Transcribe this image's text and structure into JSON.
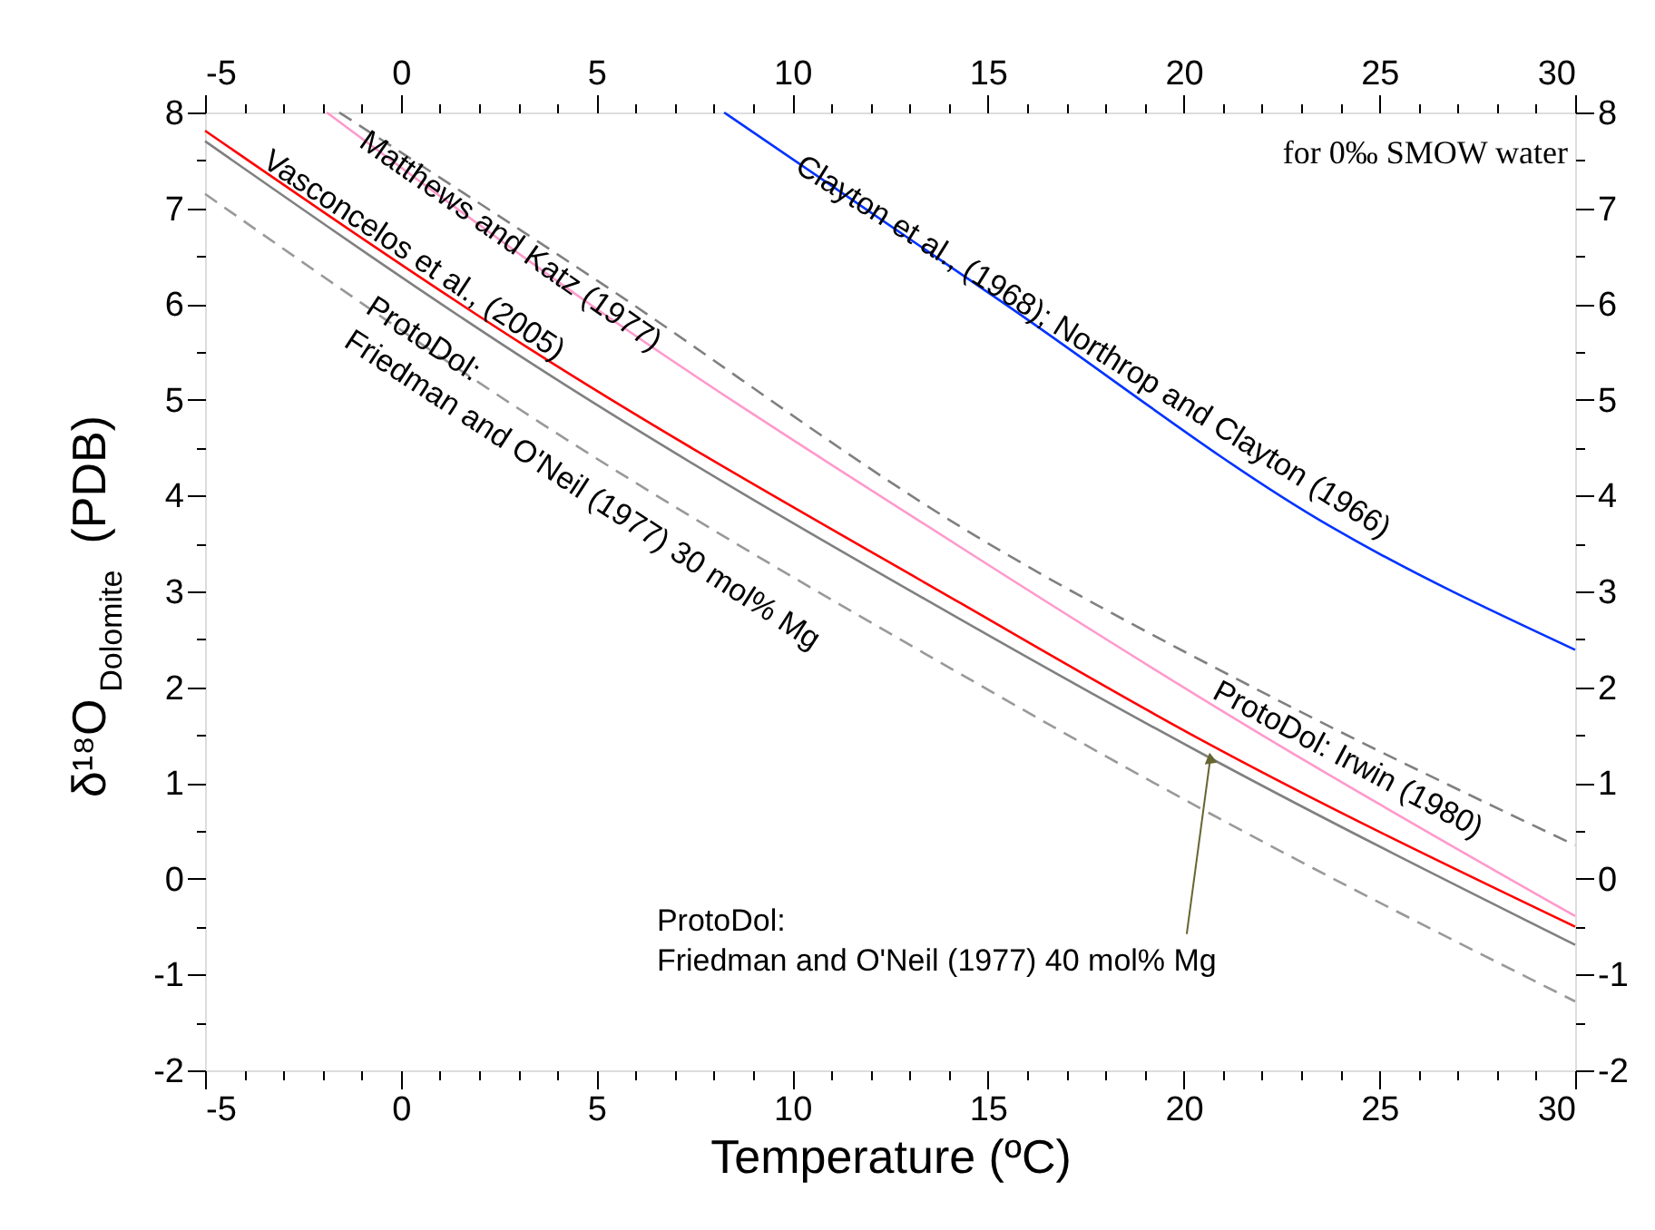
{
  "chart_data": {
    "type": "line",
    "xlabel": "Temperature (ºC)",
    "ylabel": "δ¹⁸O$_{Dolomite}$ (PDB)",
    "xlim": [
      -5,
      30
    ],
    "ylim": [
      -2,
      8
    ],
    "x2lim": [
      -5,
      30
    ],
    "y2lim": [
      -2,
      8
    ],
    "xticks": [
      -5,
      {
        "value": -4,
        "label": null
      },
      {
        "value": -3,
        "label": null
      },
      {
        "value": -2,
        "label": null
      },
      {
        "value": -1,
        "label": null
      },
      0,
      {
        "value": 1,
        "label": null
      },
      {
        "value": 2,
        "label": null
      },
      {
        "value": 3,
        "label": null
      },
      {
        "value": 4,
        "label": null
      },
      5,
      {
        "value": 6,
        "label": null
      },
      {
        "value": 7,
        "label": null
      },
      {
        "value": 8,
        "label": null
      },
      {
        "value": 9,
        "label": null
      },
      10,
      {
        "value": 11,
        "label": null
      },
      {
        "value": 12,
        "label": null
      },
      {
        "value": 13,
        "label": null
      },
      {
        "value": 14,
        "label": null
      },
      15,
      {
        "value": 16,
        "label": null
      },
      {
        "value": 17,
        "label": null
      },
      {
        "value": 18,
        "label": null
      },
      {
        "value": 19,
        "label": null
      },
      20,
      {
        "value": 21,
        "label": null
      },
      {
        "value": 22,
        "label": null
      },
      {
        "value": 23,
        "label": null
      },
      {
        "value": 24,
        "label": null
      },
      25,
      {
        "value": 26,
        "label": null
      },
      {
        "value": 27,
        "label": null
      },
      {
        "value": 28,
        "label": null
      },
      {
        "value": 29,
        "label": null
      },
      30
    ],
    "x2ticks": [
      -5,
      {
        "value": -4,
        "label": null
      },
      {
        "value": -3,
        "label": null
      },
      {
        "value": -2,
        "label": null
      },
      {
        "value": -1,
        "label": null
      },
      0,
      {
        "value": 1,
        "label": null
      },
      {
        "value": 2,
        "label": null
      },
      {
        "value": 3,
        "label": null
      },
      {
        "value": 4,
        "label": null
      },
      5,
      {
        "value": 6,
        "label": null
      },
      {
        "value": 7,
        "label": null
      },
      {
        "value": 8,
        "label": null
      },
      {
        "value": 9,
        "label": null
      },
      10,
      {
        "value": 11,
        "label": null
      },
      {
        "value": 12,
        "label": null
      },
      {
        "value": 13,
        "label": null
      },
      {
        "value": 14,
        "label": null
      },
      15,
      {
        "value": 16,
        "label": null
      },
      {
        "value": 17,
        "label": null
      },
      {
        "value": 18,
        "label": null
      },
      {
        "value": 19,
        "label": null
      },
      20,
      {
        "value": 21,
        "label": null
      },
      {
        "value": 22,
        "label": null
      },
      {
        "value": 23,
        "label": null
      },
      {
        "value": 24,
        "label": null
      },
      25,
      {
        "value": 26,
        "label": null
      },
      {
        "value": 27,
        "label": null
      },
      {
        "value": 28,
        "label": null
      },
      {
        "value": 29,
        "label": null
      },
      30
    ],
    "yticks": [
      -2,
      {
        "value": -1.5,
        "label": null
      },
      -1,
      {
        "value": -0.5,
        "label": null
      },
      0,
      {
        "value": 0.5,
        "label": null
      },
      1,
      {
        "value": 1.5,
        "label": null
      },
      2,
      {
        "value": 2.5,
        "label": null
      },
      3,
      {
        "value": 3.5,
        "label": null
      },
      4,
      {
        "value": 4.5,
        "label": null
      },
      5,
      {
        "value": 5.5,
        "label": null
      },
      6,
      {
        "value": 6.5,
        "label": null
      },
      7,
      {
        "value": 7.5,
        "label": null
      },
      8
    ],
    "y2ticks": [
      -2,
      {
        "value": -1.5,
        "label": null
      },
      -1,
      {
        "value": -0.5,
        "label": null
      },
      0,
      {
        "value": 0.5,
        "label": null
      },
      1,
      {
        "value": 1.5,
        "label": null
      },
      2,
      {
        "value": 2.5,
        "label": null
      },
      3,
      {
        "value": 3.5,
        "label": null
      },
      4,
      {
        "value": 4.5,
        "label": null
      },
      5,
      {
        "value": 5.5,
        "label": null
      },
      6,
      {
        "value": 6.5,
        "label": null
      },
      7,
      {
        "value": 7.5,
        "label": null
      },
      8
    ],
    "grid": false,
    "legend": false,
    "series": [
      {
        "color": "#0033ff",
        "line_style": "solid",
        "x": [
          8.26,
          15.4,
          23.74,
          30
        ],
        "values": [
          8,
          6.01,
          3.68,
          2.39
        ]
      },
      {
        "color": "#ff99cc",
        "line_style": "solid",
        "x": [
          -1.89,
          5,
          14.19,
          22,
          30
        ],
        "values": [
          8,
          5.95,
          3.49,
          1.5,
          -0.39
        ]
      },
      {
        "color": "#808080",
        "line_style": "dashed",
        "x": [
          -1.57,
          5,
          14.6,
          22,
          30
        ],
        "values": [
          8,
          6.25,
          3.6,
          1.95,
          0.35
        ]
      },
      {
        "color": "#ff0000",
        "line_style": "solid",
        "x": [
          -5,
          3.34,
          14.33,
          20.36,
          30
        ],
        "values": [
          7.81,
          5.52,
          2.87,
          1.47,
          -0.5
        ]
      },
      {
        "color": "#808080",
        "line_style": "solid",
        "x": [
          -5,
          3.34,
          14.33,
          20.68,
          30
        ],
        "values": [
          7.7,
          5.38,
          2.7,
          1.26,
          -0.69
        ]
      },
      {
        "color": "#999999",
        "line_style": "dashed",
        "x": [
          -5,
          3.34,
          14.33,
          20.68,
          30
        ],
        "values": [
          7.15,
          4.82,
          2.13,
          0.68,
          -1.28
        ]
      }
    ],
    "annotations": [
      {
        "text": "Clayton et al., (1968); Northrop and Clayton (1966)",
        "x": 10.16,
        "y": 7.47
      },
      {
        "text": "Matthews and Katz (1977)",
        "x": -0.97,
        "y": 7.73
      },
      {
        "text": "Vasconcelos et al., (2005)",
        "x": -3.6,
        "y": 7.43
      },
      {
        "text": "ProtoDol:\nFriedman and O'Neil (1977) 30 mol% Mg",
        "x": -0.83,
        "y": 5.98
      },
      {
        "text": "ProtoDol: Irwin (1980)",
        "x": 21.05,
        "y": 2.16
      },
      {
        "text": "ProtoDol:\nFriedman and O'Neil (1977) 40 mol% Mg",
        "x": 20.68,
        "y": 1.26
      },
      "for 0‰ SMOW water"
    ]
  }
}
